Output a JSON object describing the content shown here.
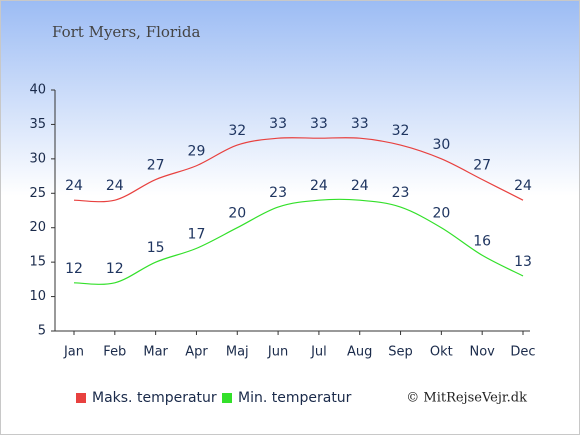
{
  "chart_data": {
    "type": "line",
    "title": "Fort Myers, Florida",
    "copyright": "© MitRejseVejr.dk",
    "categories": [
      "Jan",
      "Feb",
      "Mar",
      "Apr",
      "Maj",
      "Jun",
      "Jul",
      "Aug",
      "Sep",
      "Okt",
      "Nov",
      "Dec"
    ],
    "series": [
      {
        "name": "Maks. temperatur",
        "color": "#e8413f",
        "values": [
          24,
          24,
          27,
          29,
          32,
          33,
          33,
          33,
          32,
          30,
          27,
          24
        ]
      },
      {
        "name": "Min. temperatur",
        "color": "#33e02a",
        "values": [
          12,
          12,
          15,
          17,
          20,
          23,
          24,
          24,
          23,
          20,
          16,
          13
        ]
      }
    ],
    "ylim": [
      5,
      40
    ],
    "yticks": [
      5,
      10,
      15,
      20,
      25,
      30,
      35,
      40
    ]
  }
}
